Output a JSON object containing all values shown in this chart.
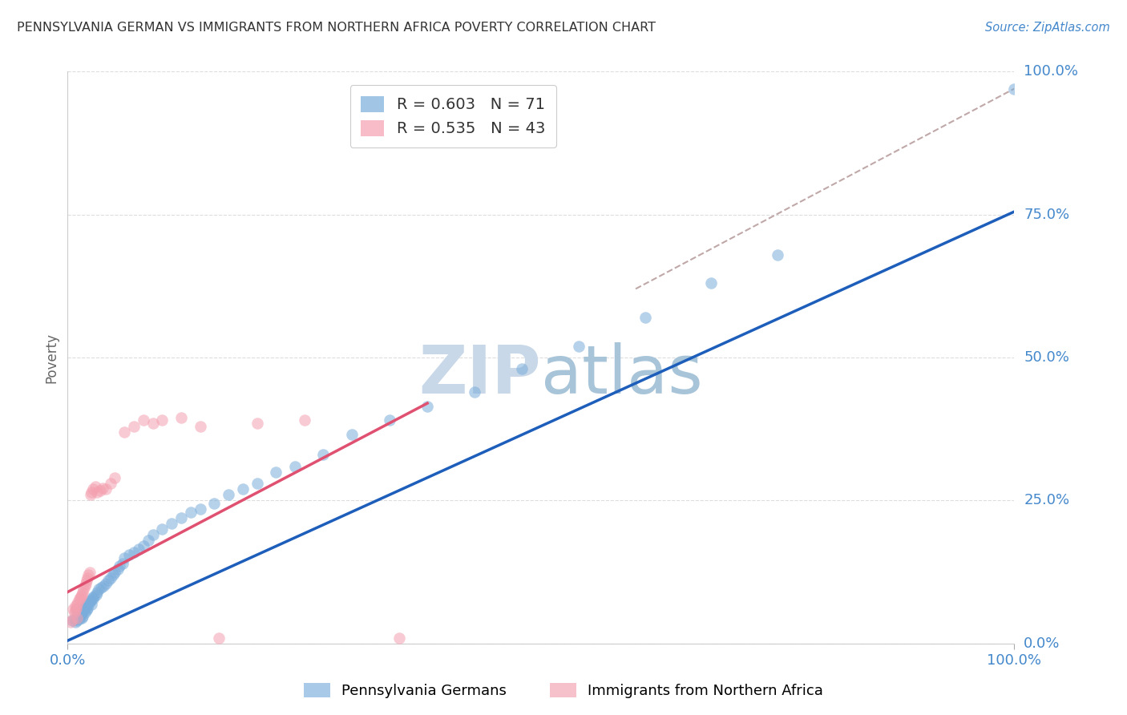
{
  "title": "PENNSYLVANIA GERMAN VS IMMIGRANTS FROM NORTHERN AFRICA POVERTY CORRELATION CHART",
  "source": "Source: ZipAtlas.com",
  "ylabel": "Poverty",
  "ytick_labels": [
    "100.0%",
    "75.0%",
    "50.0%",
    "25.0%",
    "0.0%"
  ],
  "ytick_values": [
    1.0,
    0.75,
    0.5,
    0.25,
    0.0
  ],
  "legend_blue_r": "0.603",
  "legend_blue_n": "71",
  "legend_pink_r": "0.535",
  "legend_pink_n": "43",
  "legend_label_blue": "Pennsylvania Germans",
  "legend_label_pink": "Immigrants from Northern Africa",
  "blue_color": "#7AADDB",
  "pink_color": "#F4A0B0",
  "blue_line_color": "#1E5EBB",
  "pink_line_color": "#E05070",
  "dashed_line_color": "#C0A8A8",
  "watermark_color": "#C8D8E8",
  "title_color": "#333333",
  "source_color": "#4488CC",
  "tick_color": "#4488CC",
  "ylabel_color": "#666666",
  "grid_color": "#DDDDDD",
  "blue_scatter_x": [
    0.005,
    0.007,
    0.008,
    0.009,
    0.01,
    0.01,
    0.011,
    0.012,
    0.012,
    0.013,
    0.014,
    0.015,
    0.015,
    0.016,
    0.016,
    0.017,
    0.018,
    0.018,
    0.019,
    0.02,
    0.02,
    0.021,
    0.022,
    0.023,
    0.024,
    0.025,
    0.026,
    0.027,
    0.028,
    0.03,
    0.031,
    0.033,
    0.035,
    0.038,
    0.04,
    0.043,
    0.045,
    0.048,
    0.05,
    0.053,
    0.055,
    0.058,
    0.06,
    0.065,
    0.07,
    0.075,
    0.08,
    0.085,
    0.09,
    0.1,
    0.11,
    0.12,
    0.13,
    0.14,
    0.155,
    0.17,
    0.185,
    0.2,
    0.22,
    0.24,
    0.27,
    0.3,
    0.34,
    0.38,
    0.43,
    0.48,
    0.54,
    0.61,
    0.68,
    0.75,
    1.0
  ],
  "blue_scatter_y": [
    0.04,
    0.042,
    0.038,
    0.045,
    0.06,
    0.041,
    0.055,
    0.05,
    0.043,
    0.048,
    0.052,
    0.055,
    0.044,
    0.058,
    0.048,
    0.06,
    0.062,
    0.055,
    0.065,
    0.058,
    0.07,
    0.062,
    0.068,
    0.072,
    0.075,
    0.068,
    0.08,
    0.078,
    0.082,
    0.085,
    0.09,
    0.095,
    0.098,
    0.1,
    0.105,
    0.11,
    0.115,
    0.12,
    0.125,
    0.13,
    0.135,
    0.14,
    0.15,
    0.155,
    0.16,
    0.165,
    0.17,
    0.18,
    0.19,
    0.2,
    0.21,
    0.22,
    0.23,
    0.235,
    0.245,
    0.26,
    0.27,
    0.28,
    0.3,
    0.31,
    0.33,
    0.365,
    0.39,
    0.415,
    0.44,
    0.48,
    0.52,
    0.57,
    0.63,
    0.68,
    0.97
  ],
  "pink_scatter_x": [
    0.003,
    0.005,
    0.006,
    0.007,
    0.008,
    0.008,
    0.009,
    0.01,
    0.01,
    0.011,
    0.012,
    0.013,
    0.014,
    0.015,
    0.016,
    0.017,
    0.018,
    0.019,
    0.02,
    0.021,
    0.022,
    0.023,
    0.024,
    0.025,
    0.027,
    0.029,
    0.031,
    0.034,
    0.037,
    0.04,
    0.045,
    0.05,
    0.06,
    0.07,
    0.08,
    0.09,
    0.1,
    0.12,
    0.14,
    0.16,
    0.2,
    0.25,
    0.35
  ],
  "pink_scatter_y": [
    0.038,
    0.042,
    0.06,
    0.055,
    0.058,
    0.065,
    0.062,
    0.068,
    0.045,
    0.072,
    0.078,
    0.08,
    0.082,
    0.085,
    0.09,
    0.095,
    0.1,
    0.105,
    0.11,
    0.115,
    0.12,
    0.125,
    0.26,
    0.265,
    0.27,
    0.275,
    0.265,
    0.268,
    0.272,
    0.27,
    0.28,
    0.29,
    0.37,
    0.38,
    0.39,
    0.385,
    0.39,
    0.395,
    0.38,
    0.01,
    0.385,
    0.39,
    0.01
  ],
  "blue_line_x": [
    0.0,
    1.0
  ],
  "blue_line_y": [
    0.005,
    0.755
  ],
  "pink_line_x": [
    0.0,
    0.38
  ],
  "pink_line_y": [
    0.09,
    0.42
  ],
  "dashed_line_x": [
    0.6,
    1.0
  ],
  "dashed_line_y": [
    0.62,
    0.97
  ],
  "xlim": [
    0.0,
    1.0
  ],
  "ylim": [
    0.0,
    1.0
  ],
  "xtick_positions": [
    0.0,
    1.0
  ],
  "xtick_labels": [
    "0.0%",
    "100.0%"
  ]
}
